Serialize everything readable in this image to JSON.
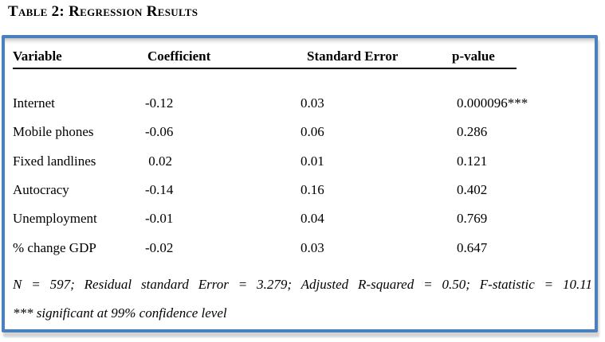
{
  "page": {
    "title": "Table 2: Regression Results"
  },
  "table": {
    "headers": [
      "Variable",
      "Coefficient",
      "Standard Error",
      "p-value"
    ],
    "rows": [
      {
        "variable": "Internet",
        "coefficient": "-0.12",
        "std_error": "0.03",
        "p_value": "0.000096***"
      },
      {
        "variable": "Mobile phones",
        "coefficient": "-0.06",
        "std_error": "0.06",
        "p_value": "0.286"
      },
      {
        "variable": "Fixed landlines",
        "coefficient": " 0.02",
        "std_error": "0.01",
        "p_value": "0.121"
      },
      {
        "variable": "Autocracy",
        "coefficient": "-0.14",
        "std_error": "0.16",
        "p_value": "0.402"
      },
      {
        "variable": "Unemployment",
        "coefficient": "-0.01",
        "std_error": "0.04",
        "p_value": "0.769"
      },
      {
        "variable": "% change GDP",
        "coefficient": "-0.02",
        "std_error": "0.03",
        "p_value": "0.647"
      }
    ],
    "notes": [
      "N = 597; Residual standard Error = 3.279; Adjusted R-squared = 0.50; F-statistic = 10.11",
      "*** significant at 99% confidence level"
    ]
  },
  "colors": {
    "border_blue": "#4b80bf",
    "text": "#000000",
    "shadow_gray": "#d4d4d4"
  }
}
